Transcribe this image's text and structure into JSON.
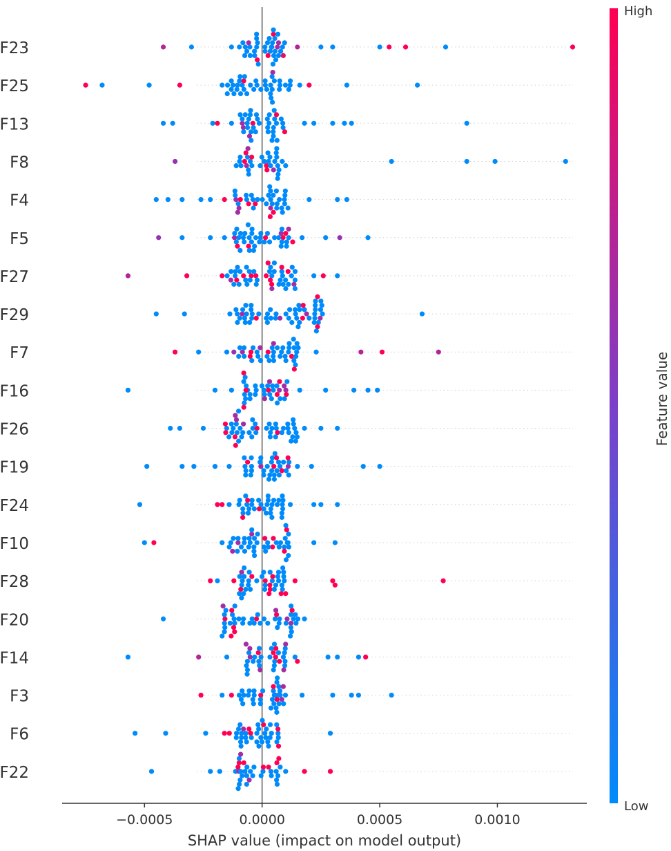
{
  "chart_data": {
    "type": "scatter",
    "subtype": "shap-beeswarm",
    "xlabel": "SHAP value (impact on model output)",
    "xlim": [
      -0.00085,
      0.00138
    ],
    "xticks": [
      -0.0005,
      0.0,
      0.0005,
      0.001
    ],
    "xtick_labels": [
      "−0.0005",
      "0.0000",
      "0.0005",
      "0.0010"
    ],
    "grid": false,
    "zero_line": true,
    "colorbar": {
      "label": "Feature value",
      "high_label": "High",
      "low_label": "Low",
      "high_color": "#ff0052",
      "mid_color": "#7b40c9",
      "low_color": "#008bfb"
    },
    "features": [
      {
        "name": "F23",
        "outliers": [
          [
            -0.00042,
            0.7
          ],
          [
            -0.0003,
            0.0
          ],
          [
            -0.00013,
            0.0
          ],
          [
            9e-05,
            0.9
          ],
          [
            0.00015,
            0.7
          ],
          [
            0.00025,
            0.0
          ],
          [
            0.0003,
            0.0
          ],
          [
            0.0005,
            0.0
          ],
          [
            0.00054,
            1.0
          ],
          [
            0.00061,
            1.0
          ],
          [
            0.00078,
            0.0
          ],
          [
            0.00132,
            1.0
          ]
        ],
        "cluster": {
          "min": -0.0001,
          "max": 0.0001,
          "n": 40
        }
      },
      {
        "name": "F25",
        "outliers": [
          [
            -0.00075,
            1.0
          ],
          [
            -0.00068,
            0.0
          ],
          [
            -0.00048,
            0.0
          ],
          [
            -0.00035,
            1.0
          ],
          [
            -0.00017,
            0.0
          ],
          [
            0.00012,
            0.0
          ],
          [
            0.00016,
            0.0
          ],
          [
            0.0002,
            1.0
          ],
          [
            0.00036,
            0.0
          ],
          [
            0.00066,
            0.0
          ]
        ],
        "cluster": {
          "min": -0.00015,
          "max": 0.00012,
          "n": 38
        }
      },
      {
        "name": "F13",
        "outliers": [
          [
            -0.00042,
            0.0
          ],
          [
            -0.00038,
            0.0
          ],
          [
            -0.00021,
            0.0
          ],
          [
            -0.00019,
            1.0
          ],
          [
            -0.00013,
            0.0
          ],
          [
            0.00018,
            0.0
          ],
          [
            0.00022,
            0.0
          ],
          [
            0.0003,
            0.0
          ],
          [
            0.00035,
            0.0
          ],
          [
            0.00038,
            0.0
          ],
          [
            0.00087,
            0.0
          ]
        ],
        "cluster": {
          "min": -0.0001,
          "max": 0.0001,
          "n": 38
        }
      },
      {
        "name": "F8",
        "outliers": [
          [
            -0.00037,
            0.6
          ],
          [
            -0.00011,
            0.0
          ],
          [
            0.0001,
            0.0
          ],
          [
            0.00055,
            0.0
          ],
          [
            0.00087,
            0.0
          ],
          [
            0.00099,
            0.0
          ],
          [
            0.00129,
            0.0
          ]
        ],
        "cluster": {
          "min": -0.0001,
          "max": 0.0001,
          "n": 32
        }
      },
      {
        "name": "F4",
        "outliers": [
          [
            -0.00045,
            0.0
          ],
          [
            -0.0004,
            0.0
          ],
          [
            -0.00034,
            0.0
          ],
          [
            -0.00026,
            0.0
          ],
          [
            -0.00022,
            0.0
          ],
          [
            -0.00016,
            1.0
          ],
          [
            0.00011,
            0.0
          ],
          [
            0.0002,
            0.0
          ],
          [
            0.00032,
            0.0
          ],
          [
            0.00036,
            0.0
          ]
        ],
        "cluster": {
          "min": -0.00012,
          "max": 0.0001,
          "n": 36
        }
      },
      {
        "name": "F5",
        "outliers": [
          [
            -0.00044,
            0.6
          ],
          [
            -0.00034,
            0.0
          ],
          [
            -0.00022,
            0.0
          ],
          [
            -0.00016,
            0.0
          ],
          [
            0.00013,
            1.0
          ],
          [
            0.00017,
            0.0
          ],
          [
            0.00027,
            0.0
          ],
          [
            0.00033,
            0.6
          ],
          [
            0.00045,
            0.0
          ]
        ],
        "cluster": {
          "min": -0.00012,
          "max": 0.00012,
          "n": 40
        }
      },
      {
        "name": "F27",
        "outliers": [
          [
            -0.00057,
            0.7
          ],
          [
            -0.00032,
            1.0
          ],
          [
            -0.00017,
            1.0
          ],
          [
            -0.00012,
            0.0
          ],
          [
            0.00014,
            0.0
          ],
          [
            0.00022,
            0.0
          ],
          [
            0.00026,
            1.0
          ],
          [
            0.00032,
            0.0
          ]
        ],
        "cluster": {
          "min": -0.00015,
          "max": 0.00015,
          "n": 45
        }
      },
      {
        "name": "F29",
        "outliers": [
          [
            -0.00045,
            0.0
          ],
          [
            -0.00033,
            0.0
          ],
          [
            0.0002,
            0.0
          ],
          [
            0.00025,
            0.0
          ],
          [
            0.00068,
            0.0
          ]
        ],
        "cluster": {
          "min": -0.00014,
          "max": 0.00026,
          "n": 55
        }
      },
      {
        "name": "F7",
        "outliers": [
          [
            -0.00037,
            1.0
          ],
          [
            -0.00027,
            0.0
          ],
          [
            -0.00015,
            0.0
          ],
          [
            -0.00012,
            0.6
          ],
          [
            0.00023,
            0.0
          ],
          [
            0.00042,
            0.7
          ],
          [
            0.00051,
            1.0
          ],
          [
            0.00075,
            0.7
          ]
        ],
        "cluster": {
          "min": -0.0001,
          "max": 0.00016,
          "n": 40
        }
      },
      {
        "name": "F16",
        "outliers": [
          [
            -0.00057,
            0.0
          ],
          [
            -0.0002,
            0.0
          ],
          [
            -0.00013,
            0.0
          ],
          [
            0.00016,
            0.0
          ],
          [
            0.00027,
            0.0
          ],
          [
            0.00039,
            0.0
          ],
          [
            0.00045,
            0.0
          ],
          [
            0.00049,
            0.0
          ]
        ],
        "cluster": {
          "min": -8e-05,
          "max": 0.00012,
          "n": 40
        }
      },
      {
        "name": "F26",
        "outliers": [
          [
            -0.00039,
            0.0
          ],
          [
            -0.00035,
            0.0
          ],
          [
            -0.00025,
            0.0
          ],
          [
            0.00018,
            0.0
          ],
          [
            0.00025,
            0.0
          ],
          [
            0.00032,
            0.0
          ]
        ],
        "cluster": {
          "min": -0.00016,
          "max": 0.00015,
          "n": 48
        }
      },
      {
        "name": "F19",
        "outliers": [
          [
            -0.00049,
            0.0
          ],
          [
            -0.00034,
            0.0
          ],
          [
            -0.00029,
            0.0
          ],
          [
            -0.0002,
            0.0
          ],
          [
            -0.00014,
            0.0
          ],
          [
            0.00015,
            0.0
          ],
          [
            0.00021,
            0.0
          ],
          [
            0.00043,
            0.0
          ],
          [
            0.0005,
            0.0
          ]
        ],
        "cluster": {
          "min": -8e-05,
          "max": 0.00012,
          "n": 36
        }
      },
      {
        "name": "F24",
        "outliers": [
          [
            -0.00052,
            0.0
          ],
          [
            -0.00019,
            1.0
          ],
          [
            -0.00017,
            1.0
          ],
          [
            -0.00014,
            0.0
          ],
          [
            0.00012,
            0.0
          ],
          [
            0.00022,
            0.0
          ],
          [
            0.00025,
            0.0
          ],
          [
            0.00032,
            0.0
          ]
        ],
        "cluster": {
          "min": -0.0001,
          "max": 0.0001,
          "n": 34
        }
      },
      {
        "name": "F10",
        "outliers": [
          [
            -0.0005,
            0.0
          ],
          [
            -0.00046,
            1.0
          ],
          [
            -0.00017,
            0.0
          ],
          [
            0.00011,
            0.0
          ],
          [
            0.00022,
            0.0
          ],
          [
            0.00031,
            0.0
          ]
        ],
        "cluster": {
          "min": -0.00014,
          "max": 0.00012,
          "n": 42
        }
      },
      {
        "name": "F28",
        "outliers": [
          [
            -0.00022,
            1.0
          ],
          [
            -0.00019,
            0.0
          ],
          [
            -0.00012,
            1.0
          ],
          [
            0.0001,
            1.0
          ],
          [
            0.00014,
            1.0
          ],
          [
            0.0003,
            1.0
          ],
          [
            0.00031,
            1.0
          ],
          [
            0.00077,
            1.0
          ]
        ],
        "cluster": {
          "min": -0.0001,
          "max": 0.0001,
          "n": 40
        }
      },
      {
        "name": "F20",
        "outliers": [
          [
            -0.00042,
            0.0
          ],
          [
            -0.00017,
            0.0
          ],
          [
            0.00012,
            0.0
          ],
          [
            0.00018,
            0.0
          ]
        ],
        "cluster": {
          "min": -0.00017,
          "max": 0.00017,
          "n": 45
        }
      },
      {
        "name": "F14",
        "outliers": [
          [
            -0.00057,
            0.0
          ],
          [
            -0.00027,
            0.7
          ],
          [
            -0.00015,
            0.0
          ],
          [
            0.00014,
            0.0
          ],
          [
            0.00015,
            1.0
          ],
          [
            0.00028,
            0.0
          ],
          [
            0.00032,
            0.0
          ],
          [
            0.00041,
            0.0
          ],
          [
            0.00044,
            1.0
          ]
        ],
        "cluster": {
          "min": -8e-05,
          "max": 0.0001,
          "n": 34
        }
      },
      {
        "name": "F3",
        "outliers": [
          [
            -0.00026,
            1.0
          ],
          [
            -0.00017,
            0.0
          ],
          [
            -0.00013,
            1.0
          ],
          [
            9e-05,
            0.7
          ],
          [
            0.00017,
            0.0
          ],
          [
            0.0003,
            0.0
          ],
          [
            0.00038,
            0.0
          ],
          [
            0.00041,
            0.0
          ],
          [
            0.00055,
            0.0
          ]
        ],
        "cluster": {
          "min": -0.0001,
          "max": 0.0001,
          "n": 36
        }
      },
      {
        "name": "F6",
        "outliers": [
          [
            -0.00054,
            0.0
          ],
          [
            -0.00041,
            0.0
          ],
          [
            -0.00024,
            0.0
          ],
          [
            -0.00016,
            1.0
          ],
          [
            7e-05,
            1.0
          ],
          [
            0.00029,
            0.0
          ]
        ],
        "cluster": {
          "min": -0.00014,
          "max": 7e-05,
          "n": 38
        }
      },
      {
        "name": "F22",
        "outliers": [
          [
            -0.00047,
            0.0
          ],
          [
            -0.00022,
            0.0
          ],
          [
            -0.00018,
            0.0
          ],
          [
            0.0001,
            0.0
          ],
          [
            0.00018,
            1.0
          ],
          [
            0.00029,
            1.0
          ]
        ],
        "cluster": {
          "min": -0.00012,
          "max": 8e-05,
          "n": 34
        }
      }
    ]
  }
}
